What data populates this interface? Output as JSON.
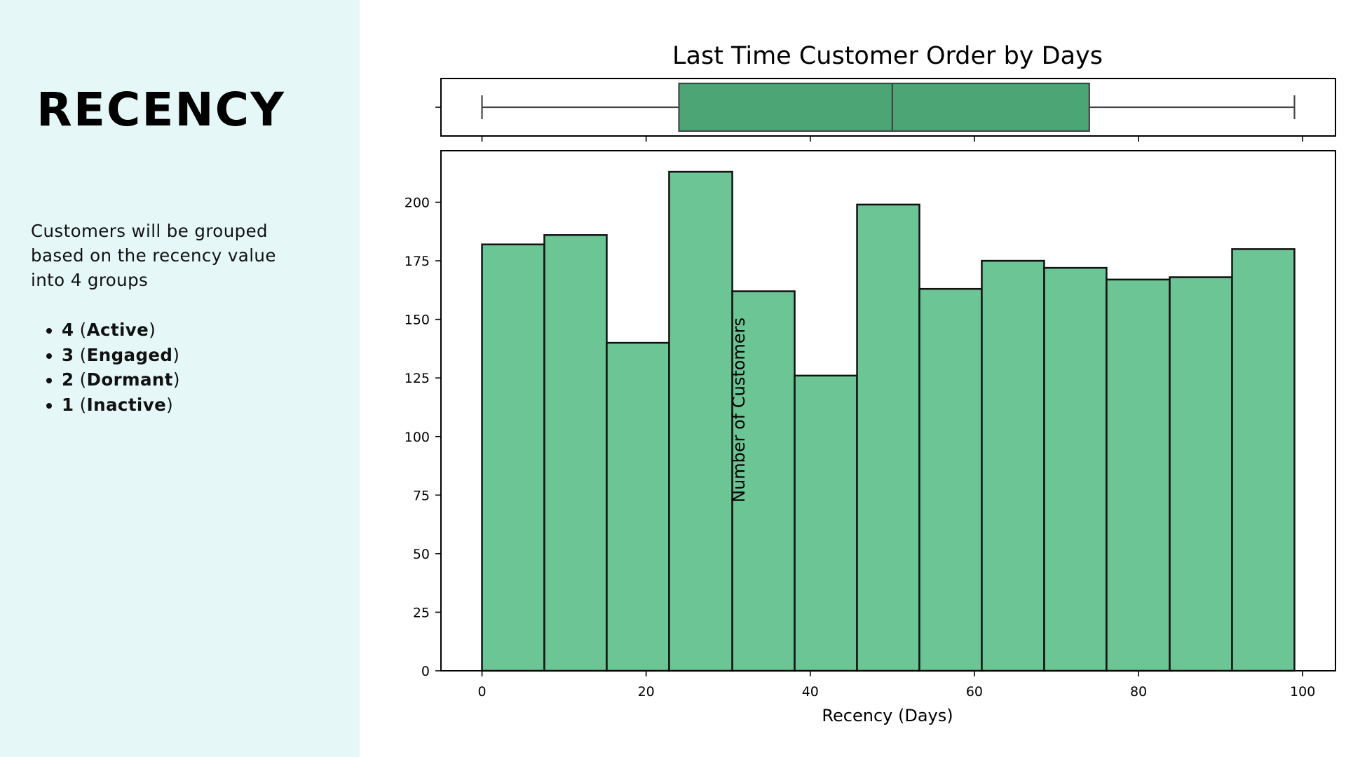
{
  "sidebar": {
    "title": "RECENCY",
    "description": "Customers will be grouped based on the recency value into 4 groups",
    "groups": [
      {
        "score": "4",
        "label": "Active"
      },
      {
        "score": "3",
        "label": "Engaged"
      },
      {
        "score": "2",
        "label": "Dormant"
      },
      {
        "score": "1",
        "label": "Inactive"
      }
    ]
  },
  "chart_data": {
    "type": "histogram",
    "title": "Last Time Customer Order by Days",
    "xlabel": "Recency (Days)",
    "ylabel": "Number of Customers",
    "xlim": [
      -5,
      104
    ],
    "ylim": [
      0,
      222
    ],
    "xticks": [
      0,
      20,
      40,
      60,
      80,
      100
    ],
    "yticks": [
      0,
      25,
      50,
      75,
      100,
      125,
      150,
      175,
      200
    ],
    "bins": [
      {
        "start": 0,
        "end": 7.6,
        "count": 182
      },
      {
        "start": 7.6,
        "end": 15.2,
        "count": 186
      },
      {
        "start": 15.2,
        "end": 22.8,
        "count": 140
      },
      {
        "start": 22.8,
        "end": 30.5,
        "count": 213
      },
      {
        "start": 30.5,
        "end": 38.1,
        "count": 162
      },
      {
        "start": 38.1,
        "end": 45.7,
        "count": 126
      },
      {
        "start": 45.7,
        "end": 53.3,
        "count": 199
      },
      {
        "start": 53.3,
        "end": 60.9,
        "count": 163
      },
      {
        "start": 60.9,
        "end": 68.5,
        "count": 175
      },
      {
        "start": 68.5,
        "end": 76.1,
        "count": 172
      },
      {
        "start": 76.1,
        "end": 83.8,
        "count": 167
      },
      {
        "start": 83.8,
        "end": 91.4,
        "count": 168
      },
      {
        "start": 91.4,
        "end": 99,
        "count": 180
      }
    ],
    "boxplot": {
      "min": 0,
      "q1": 24,
      "median": 50,
      "q3": 74,
      "max": 99
    },
    "colors": {
      "bar_fill": "#6cc594",
      "box_fill": "#4ca575",
      "edge": "#111111",
      "box_edge": "#444444"
    },
    "grid": false
  }
}
